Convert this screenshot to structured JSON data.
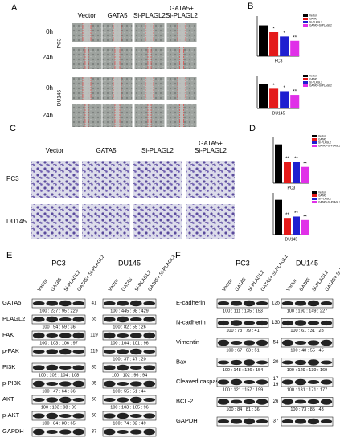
{
  "panel_labels": {
    "a": "A",
    "b": "B",
    "c": "C",
    "d": "D",
    "e": "E",
    "f": "F"
  },
  "wound_healing": {
    "columns": [
      [
        "Vector"
      ],
      [
        "GATA5"
      ],
      [
        "Si-PLAGL2"
      ],
      [
        "GATA5+",
        "Si-PLAGL2"
      ]
    ],
    "cell_lines": [
      {
        "name": "PC3",
        "times": [
          "0h",
          "24h"
        ]
      },
      {
        "name": "DU145",
        "times": [
          "0h",
          "24h"
        ]
      }
    ]
  },
  "wound_charts": [
    {
      "type": "bar",
      "label": "PC3",
      "legend": [
        "Vector",
        "GATA5",
        "Si-PLAGL2",
        "GATA5+Si-PLAGL2"
      ],
      "colors": [
        "#000000",
        "#e41a1a",
        "#1f1fd0",
        "#e030e8"
      ],
      "values": [
        1.0,
        0.78,
        0.64,
        0.5
      ],
      "significance": [
        "*",
        "*",
        "**"
      ],
      "ylim": [
        0,
        1.3
      ]
    },
    {
      "type": "bar",
      "label": "DU145",
      "legend": [
        "Vector",
        "GATA5",
        "Si-PLAGL2",
        "GATA5+Si-PLAGL2"
      ],
      "colors": [
        "#000000",
        "#e41a1a",
        "#1f1fd0",
        "#e030e8"
      ],
      "values": [
        1.0,
        0.8,
        0.7,
        0.55
      ],
      "significance": [
        "*",
        "*",
        "**"
      ],
      "ylim": [
        0,
        1.3
      ]
    }
  ],
  "transwell": {
    "columns": [
      [
        "Vector"
      ],
      [
        "GATA5"
      ],
      [
        "Si-PLAGL2"
      ],
      [
        "GATA5+",
        "Si-PLAGL2"
      ]
    ],
    "rows": [
      "PC3",
      "DU145"
    ]
  },
  "invasion_charts": [
    {
      "type": "bar",
      "label": "PC3",
      "legend": [
        "Vector",
        "GATA5",
        "Si-PLAGL2",
        "GATA5+Si-PLAGL2"
      ],
      "colors": [
        "#000000",
        "#e41a1a",
        "#1f1fd0",
        "#e030e8"
      ],
      "values": [
        1.0,
        0.55,
        0.55,
        0.42
      ],
      "significance": [
        "**",
        "**",
        "**"
      ],
      "ylim": [
        0,
        1.2
      ]
    },
    {
      "type": "bar",
      "label": "DU145",
      "legend": [
        "Vector",
        "GATA5",
        "Si-PLAGL2",
        "GATA5+Si-PLAGL2"
      ],
      "colors": [
        "#000000",
        "#e41a1a",
        "#1f1fd0",
        "#e030e8"
      ],
      "values": [
        1.0,
        0.48,
        0.52,
        0.42
      ],
      "significance": [
        "**",
        "**",
        "**"
      ],
      "ylim": [
        0,
        1.2
      ]
    }
  ],
  "blot_e": {
    "cell_lines": [
      "PC3",
      "DU145"
    ],
    "lanes": [
      "Vector",
      "GATA5",
      "Si-PLAGL2",
      "GATA5+ Si-PLAGL2"
    ],
    "rows": [
      {
        "protein": "GATA5",
        "marker": [
          41
        ],
        "pc3": "100 : 237 : 95 : 229",
        "du145": "100 : 445 : 98 : 429"
      },
      {
        "protein": "PLAGL2",
        "marker": [
          55
        ],
        "pc3": "100 : 54 : 59 : 36",
        "du145": "100 : 82 : 55 : 26"
      },
      {
        "protein": "FAK",
        "marker": [
          119
        ],
        "pc3": "100 : 103 : 106 : 97",
        "du145": "100 : 104 : 101 : 96"
      },
      {
        "protein": "p-FAK",
        "marker": [
          119
        ],
        "du145": "100 : 37 : 47 : 20"
      },
      {
        "protein": "PI3K",
        "marker": [
          85
        ],
        "pc3": "100 : 102 : 104 : 108",
        "du145": "100 : 102 : 96 : 94"
      },
      {
        "protein": "p-PI3K",
        "marker": [
          85
        ],
        "pc3": "100 : 47 : 64 : 36",
        "du145": "100 : 55 : 51 : 44"
      },
      {
        "protein": "AKT",
        "marker": [
          60
        ],
        "pc3": "100 : 103 : 98 : 99",
        "du145": "100 : 103 : 105 : 96"
      },
      {
        "protein": "p-AKT",
        "marker": [
          60
        ],
        "pc3": "100 : 84 : 80 : 65",
        "du145": "100 : 74 : 82 : 49"
      },
      {
        "protein": "GAPDH",
        "marker": [
          37
        ]
      }
    ]
  },
  "blot_f": {
    "cell_lines": [
      "PC3",
      "DU145"
    ],
    "lanes": [
      "Vector",
      "GATA5",
      "Si-PLAGL2",
      "GATA5+ Si-PLAGL2"
    ],
    "rows": [
      {
        "protein": "E-cadherin",
        "marker": [
          125
        ],
        "pc3": "100 : 111 : 135 : 153",
        "du145": "100 : 190 : 149 : 227"
      },
      {
        "protein": "N-cadherin",
        "marker": [
          130
        ],
        "pc3": "100 : 73 : 79 : 41",
        "du145": "100 : 61 : 31 : 28"
      },
      {
        "protein": "Vimentin",
        "marker": [
          54
        ],
        "pc3": "100 : 67 : 63 : 51",
        "du145": "100 : 48 : 55 : 45"
      },
      {
        "protein": "Bax",
        "marker": [
          20
        ],
        "pc3": "100 : 148 : 136 : 154",
        "du145": "100 : 129 : 139 : 169"
      },
      {
        "protein": "Cleaved caspase-3",
        "marker": [
          17,
          19
        ],
        "pc3": "100 : 121 : 157 : 199",
        "du145": "100 : 131 : 171 : 177"
      },
      {
        "protein": "BCL-2",
        "marker": [
          26
        ],
        "pc3": "100 : 84 : 81 : 36",
        "du145": "100 : 73 : 85 : 43"
      },
      {
        "protein": "GAPDH",
        "marker": [
          37
        ]
      }
    ]
  }
}
